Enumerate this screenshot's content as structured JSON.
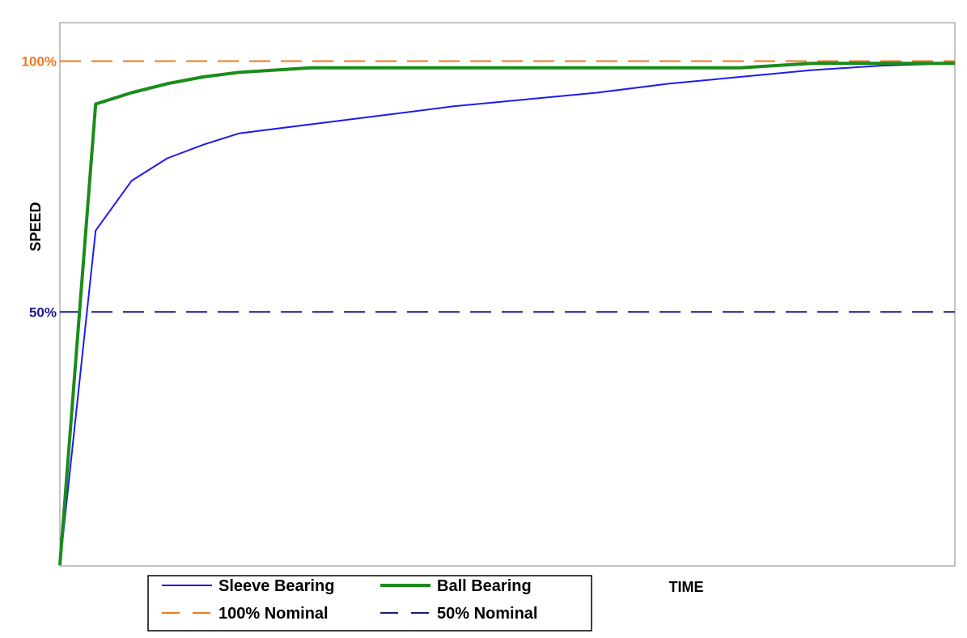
{
  "chart_data": {
    "type": "line",
    "title": "",
    "xlabel": "TIME",
    "ylabel": "SPEED",
    "xlim": [
      0,
      100
    ],
    "ylim": [
      0,
      120
    ],
    "grid": false,
    "legend_placement": "bottom-center",
    "y_tick_labels": [
      {
        "value": 100,
        "label": "100%",
        "color": "#f07820"
      },
      {
        "value": 50,
        "label": "50%",
        "color": "#1a1a8c"
      }
    ],
    "series": [
      {
        "name": "Sleeve Bearing",
        "color": "#1c1cf0",
        "style": "solid",
        "x": [
          0,
          4,
          8,
          12,
          16,
          20,
          28,
          36,
          44,
          52,
          60,
          68,
          76,
          84,
          92,
          100
        ],
        "y": [
          0,
          74,
          85,
          90,
          93,
          95.5,
          97.5,
          99.5,
          101.5,
          103,
          104.5,
          106.5,
          108,
          109.5,
          110.5,
          111
        ]
      },
      {
        "name": "Ball Bearing",
        "color": "#1a8c1a",
        "style": "solid",
        "x": [
          0,
          4,
          8,
          12,
          16,
          20,
          28,
          36,
          44,
          52,
          60,
          68,
          76,
          84,
          92,
          100
        ],
        "y": [
          0,
          102,
          104.5,
          106.5,
          108,
          109,
          110,
          110,
          110,
          110,
          110,
          110,
          110,
          111,
          111,
          111
        ]
      },
      {
        "name": "100% Nominal",
        "color": "#f07820",
        "style": "dashed",
        "x": [
          0,
          100
        ],
        "y": [
          111.5,
          111.5
        ]
      },
      {
        "name": "50% Nominal",
        "color": "#1a1a8c",
        "style": "dashed",
        "x": [
          0,
          100
        ],
        "y": [
          56,
          56
        ]
      }
    ]
  }
}
